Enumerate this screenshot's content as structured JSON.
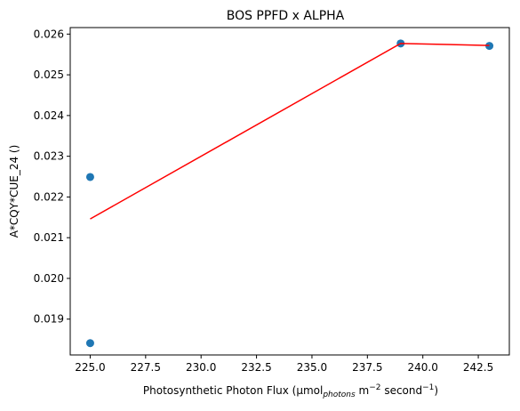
{
  "chart_data": {
    "type": "scatter",
    "title": "BOS PPFD x ALPHA",
    "xlabel": {
      "prefix": "Photosynthetic Photon Flux (µmol",
      "sub": "photons",
      "mid": " m",
      "sup1": "−2",
      "mid2": " second",
      "sup2": "−1",
      "suffix": ")"
    },
    "ylabel": "A*CQY*CUE_24 ()",
    "xlim": [
      224.1,
      243.9
    ],
    "ylim": [
      0.01812,
      0.02616
    ],
    "xticks": [
      225.0,
      227.5,
      230.0,
      232.5,
      235.0,
      237.5,
      240.0,
      242.5
    ],
    "xtick_labels": [
      "225.0",
      "227.5",
      "230.0",
      "232.5",
      "235.0",
      "237.5",
      "240.0",
      "242.5"
    ],
    "yticks": [
      0.019,
      0.02,
      0.021,
      0.022,
      0.023,
      0.024,
      0.025,
      0.026
    ],
    "ytick_labels": [
      "0.019",
      "0.020",
      "0.021",
      "0.022",
      "0.023",
      "0.024",
      "0.025",
      "0.026"
    ],
    "grid": false,
    "series": [
      {
        "kind": "scatter",
        "color": "#1f77b4",
        "points": [
          {
            "x": 225,
            "y": 0.02249
          },
          {
            "x": 225,
            "y": 0.01841
          },
          {
            "x": 239,
            "y": 0.02577
          },
          {
            "x": 243,
            "y": 0.02571
          }
        ]
      },
      {
        "kind": "line",
        "color": "#ff0000",
        "points": [
          {
            "x": 225,
            "y": 0.02146
          },
          {
            "x": 239,
            "y": 0.02577
          },
          {
            "x": 243,
            "y": 0.02572
          }
        ]
      }
    ]
  }
}
